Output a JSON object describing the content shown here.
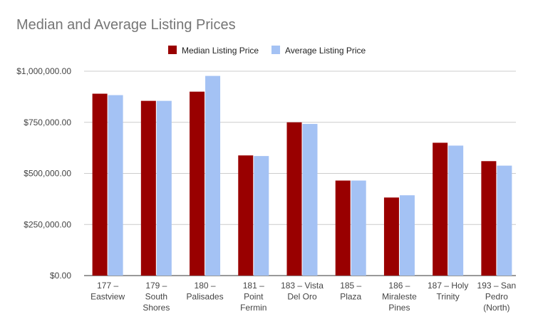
{
  "chart_data": {
    "type": "bar",
    "title": "Median and Average Listing Prices",
    "xlabel": "",
    "ylabel": "",
    "ylim": [
      0,
      1000000
    ],
    "y_ticks": [
      {
        "value": 0,
        "label": "$0.00"
      },
      {
        "value": 250000,
        "label": "$250,000.00"
      },
      {
        "value": 500000,
        "label": "$500,000.00"
      },
      {
        "value": 750000,
        "label": "$750,000.00"
      },
      {
        "value": 1000000,
        "label": "$1,000,000.00"
      }
    ],
    "grid": true,
    "legend_position": "top",
    "categories": [
      [
        "177 –",
        "Eastview"
      ],
      [
        "179 –",
        "South",
        "Shores"
      ],
      [
        "180 –",
        "Palisades"
      ],
      [
        "181 –",
        "Point",
        "Fermin"
      ],
      [
        "183 – Vista",
        "Del Oro"
      ],
      [
        "185 –",
        "Plaza"
      ],
      [
        "186 –",
        "Miraleste",
        "Pines"
      ],
      [
        "187 – Holy",
        "Trinity"
      ],
      [
        "193 – San",
        "Pedro",
        "(North)"
      ]
    ],
    "series": [
      {
        "name": "Median Listing Price",
        "color": "#990000",
        "values": [
          890000,
          855000,
          900000,
          588000,
          750000,
          465000,
          382000,
          650000,
          560000
        ]
      },
      {
        "name": "Average Listing Price",
        "color": "#a4c2f4",
        "values": [
          883000,
          855000,
          977000,
          585000,
          742000,
          465000,
          393000,
          636000,
          538000
        ]
      }
    ]
  }
}
